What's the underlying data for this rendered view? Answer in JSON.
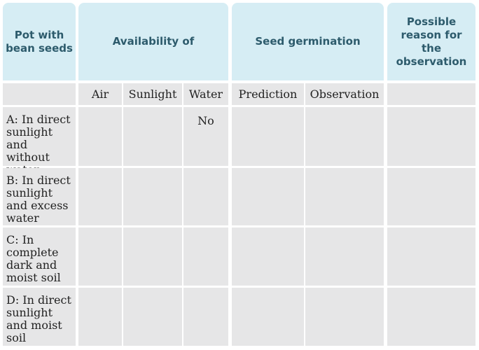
{
  "table": {
    "headers": [
      "Pot with bean seeds",
      "Availability of",
      "Seed germination",
      "Possible reason for the observation"
    ],
    "subheaders": [
      "Air",
      "Sunlight",
      "Water",
      "Prediction",
      "Observation"
    ],
    "rows": [
      {
        "pot": "A: In direct sunlight and without water",
        "water": "No"
      },
      {
        "pot": "B: In direct sunlight and excess water"
      },
      {
        "pot": "C: In complete dark and moist soil"
      },
      {
        "pot": "D: In direct sunlight and moist soil"
      }
    ]
  }
}
